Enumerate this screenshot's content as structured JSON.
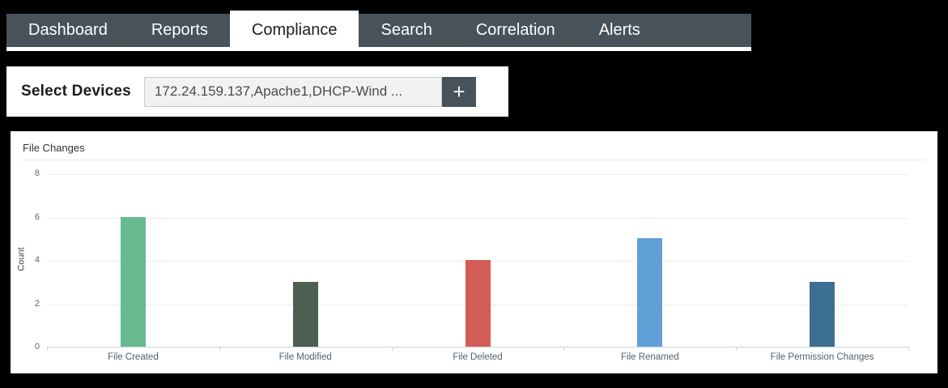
{
  "colors": {
    "page_bg": "#000000",
    "panel_bg": "#ffffff",
    "nav_bg": "#48525a",
    "nav_text": "#ffffff",
    "nav_active_bg": "#ffffff",
    "nav_active_text": "#1e1e1e",
    "plus_button_bg": "#48525a",
    "axis_line": "#ccd4e6",
    "gridline": "#ededf2",
    "tick_text": "#666666"
  },
  "nav": {
    "tabs": [
      {
        "label": "Dashboard",
        "active": false
      },
      {
        "label": "Reports",
        "active": false
      },
      {
        "label": "Compliance",
        "active": true
      },
      {
        "label": "Search",
        "active": false
      },
      {
        "label": "Correlation",
        "active": false
      },
      {
        "label": "Alerts",
        "active": false
      }
    ]
  },
  "device_selector": {
    "label": "Select Devices",
    "input_value": "172.24.159.137,Apache1,DHCP-Wind ...",
    "add_button_label": "+"
  },
  "chart_data": {
    "type": "bar",
    "title": "File Changes",
    "categories": [
      "File Created",
      "File Modified",
      "File Deleted",
      "File Renamed",
      "File Permission Changes"
    ],
    "values": [
      6,
      3,
      4,
      5,
      3
    ],
    "bar_colors": [
      "#68bb8f",
      "#4c5f50",
      "#d45c56",
      "#61a0d6",
      "#3d6e93"
    ],
    "xlabel": "",
    "ylabel": "Count",
    "ylim": [
      0,
      8
    ],
    "yticks": [
      0,
      2,
      4,
      6,
      8
    ],
    "grid": true,
    "legend": false
  }
}
